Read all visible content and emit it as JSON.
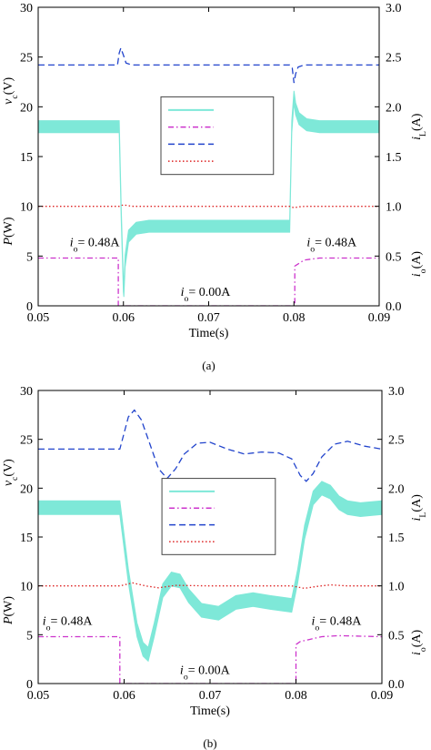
{
  "chart_data": [
    {
      "type": "line",
      "panel_label": "(a)",
      "xlabel": "Time(s)",
      "ylabel_left_top_var": "v",
      "ylabel_left_top_sub": "c",
      "ylabel_left_top_unit": "(V)",
      "ylabel_left_bottom_var": "P",
      "ylabel_left_bottom_unit": "(W)",
      "ylabel_right_top_var": "i",
      "ylabel_right_top_sub": "L",
      "ylabel_right_top_unit": "(A)",
      "ylabel_right_bottom_var": "i",
      "ylabel_right_bottom_sub": "o",
      "ylabel_right_bottom_unit": "(A)",
      "xlim": [
        0.05,
        0.09
      ],
      "ylim_left": [
        0,
        30
      ],
      "ylim_right": [
        0,
        3.0
      ],
      "x_ticks": [
        "0.05",
        "0.06",
        "0.07",
        "0.08",
        "0.09"
      ],
      "y_left_ticks": [
        "0",
        "5",
        "10",
        "15",
        "20",
        "25",
        "30"
      ],
      "y_right_ticks": [
        "0.0",
        "0.5",
        "1.0",
        "1.5",
        "2.0",
        "2.5",
        "3.0"
      ],
      "annotations": [
        {
          "var": "i",
          "sub": "o",
          "text": "= 0.48A",
          "at": [
            0.0537,
            6.0
          ]
        },
        {
          "var": "i",
          "sub": "o",
          "text": "= 0.00A",
          "at": [
            0.0667,
            1.0
          ]
        },
        {
          "var": "i",
          "sub": "o",
          "text": "= 0.48A",
          "at": [
            0.0815,
            6.0
          ]
        }
      ],
      "series": [
        {
          "role": "inductor_current_band",
          "axis": "right",
          "color": "#7ee8d8",
          "x": [
            0.05,
            0.0595,
            0.05975,
            0.06,
            0.06005,
            0.0602,
            0.0606,
            0.0615,
            0.063,
            0.07,
            0.0795,
            0.07975,
            0.08,
            0.0802,
            0.0806,
            0.0815,
            0.083,
            0.09
          ],
          "y": [
            1.8,
            1.8,
            0.9,
            0.2,
            0.15,
            0.45,
            0.7,
            0.78,
            0.8,
            0.8,
            0.8,
            1.8,
            2.1,
            1.98,
            1.88,
            1.82,
            1.8,
            1.8
          ],
          "band_width": 0.12
        },
        {
          "role": "output_current",
          "axis": "right",
          "color": "#cc33cc",
          "dash": "dashdot",
          "x": [
            0.05,
            0.0594,
            0.0594,
            0.0801,
            0.0801,
            0.0812,
            0.083,
            0.09
          ],
          "y": [
            0.48,
            0.48,
            0.0,
            0.0,
            0.4,
            0.46,
            0.48,
            0.48
          ]
        },
        {
          "role": "capacitor_voltage",
          "axis": "left",
          "color": "#2244cc",
          "dash": "dash",
          "x": [
            0.05,
            0.0593,
            0.0595,
            0.0597,
            0.06,
            0.0603,
            0.061,
            0.0795,
            0.0798,
            0.08,
            0.0802,
            0.0805,
            0.0812,
            0.09
          ],
          "y": [
            24.2,
            24.2,
            25.4,
            25.9,
            25.2,
            24.4,
            24.2,
            24.2,
            23.9,
            22.4,
            23.3,
            24.0,
            24.2,
            24.2
          ]
        },
        {
          "role": "power",
          "axis": "left",
          "color": "#dd2222",
          "dash": "dot",
          "x": [
            0.05,
            0.0595,
            0.06,
            0.0606,
            0.0612,
            0.0795,
            0.08,
            0.0806,
            0.0813,
            0.09
          ],
          "y": [
            10.0,
            10.0,
            10.15,
            10.05,
            10.0,
            10.0,
            9.85,
            9.95,
            10.0,
            10.0
          ]
        }
      ]
    },
    {
      "type": "line",
      "panel_label": "(b)",
      "xlabel": "Time(s)",
      "ylabel_left_top_var": "v",
      "ylabel_left_top_sub": "c",
      "ylabel_left_top_unit": "(V)",
      "ylabel_left_bottom_var": "P",
      "ylabel_left_bottom_unit": "(W)",
      "ylabel_right_top_var": "i",
      "ylabel_right_top_sub": "L",
      "ylabel_right_top_unit": "(A)",
      "ylabel_right_bottom_var": "i",
      "ylabel_right_bottom_sub": "o",
      "ylabel_right_bottom_unit": "(A)",
      "xlim": [
        0.05,
        0.09
      ],
      "ylim_left": [
        0,
        30
      ],
      "ylim_right": [
        0,
        3.0
      ],
      "x_ticks": [
        "0.05",
        "0.06",
        "0.07",
        "0.08",
        "0.09"
      ],
      "y_left_ticks": [
        "0",
        "5",
        "10",
        "15",
        "20",
        "25",
        "30"
      ],
      "y_right_ticks": [
        "0.0",
        "0.5",
        "1.0",
        "1.5",
        "2.0",
        "2.5",
        "3.0"
      ],
      "annotations": [
        {
          "var": "i",
          "sub": "o",
          "text": "= 0.48A",
          "at": [
            0.0505,
            6.0
          ]
        },
        {
          "var": "i",
          "sub": "o",
          "text": "= 0.00A",
          "at": [
            0.0665,
            1.0
          ]
        },
        {
          "var": "i",
          "sub": "o",
          "text": "= 0.48A",
          "at": [
            0.0818,
            6.0
          ]
        }
      ],
      "series": [
        {
          "role": "inductor_current_band",
          "axis": "right",
          "color": "#7ee8d8",
          "x": [
            0.05,
            0.0595,
            0.0605,
            0.0615,
            0.0622,
            0.0628,
            0.0635,
            0.0645,
            0.0655,
            0.0665,
            0.0675,
            0.069,
            0.071,
            0.073,
            0.075,
            0.077,
            0.0795,
            0.0802,
            0.081,
            0.082,
            0.083,
            0.084,
            0.085,
            0.086,
            0.0875,
            0.09
          ],
          "y": [
            1.8,
            1.8,
            1.1,
            0.55,
            0.35,
            0.3,
            0.55,
            0.95,
            1.07,
            1.05,
            0.9,
            0.75,
            0.72,
            0.83,
            0.86,
            0.83,
            0.8,
            1.1,
            1.55,
            1.9,
            2.0,
            1.96,
            1.85,
            1.8,
            1.78,
            1.8
          ],
          "band_width": 0.14
        },
        {
          "role": "output_current",
          "axis": "right",
          "color": "#cc33cc",
          "dash": "dashdot",
          "x": [
            0.05,
            0.0595,
            0.0595,
            0.08,
            0.08,
            0.0805,
            0.0815,
            0.083,
            0.085,
            0.09
          ],
          "y": [
            0.48,
            0.48,
            0.0,
            0.0,
            0.4,
            0.43,
            0.45,
            0.48,
            0.49,
            0.48
          ]
        },
        {
          "role": "capacitor_voltage",
          "axis": "left",
          "color": "#2244cc",
          "dash": "dash",
          "x": [
            0.05,
            0.0595,
            0.0605,
            0.0612,
            0.062,
            0.063,
            0.064,
            0.065,
            0.066,
            0.067,
            0.0685,
            0.07,
            0.072,
            0.074,
            0.076,
            0.078,
            0.0795,
            0.0805,
            0.0812,
            0.082,
            0.083,
            0.0845,
            0.086,
            0.088,
            0.09
          ],
          "y": [
            24.0,
            24.0,
            27.3,
            28.0,
            27.0,
            24.5,
            22.0,
            21.0,
            22.0,
            23.5,
            24.6,
            24.7,
            24.0,
            23.5,
            23.7,
            23.6,
            23.0,
            21.3,
            20.7,
            21.5,
            23.2,
            24.5,
            24.8,
            24.3,
            24.0
          ]
        },
        {
          "role": "power",
          "axis": "left",
          "color": "#dd2222",
          "dash": "dot",
          "x": [
            0.05,
            0.0595,
            0.061,
            0.0625,
            0.064,
            0.066,
            0.07,
            0.0795,
            0.081,
            0.0825,
            0.084,
            0.086,
            0.09
          ],
          "y": [
            10.0,
            10.0,
            10.3,
            10.0,
            9.8,
            10.05,
            10.0,
            10.0,
            9.75,
            9.95,
            10.1,
            10.0,
            10.0
          ]
        }
      ]
    }
  ]
}
